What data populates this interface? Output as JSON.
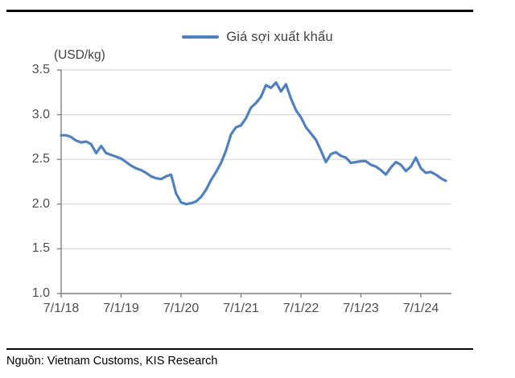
{
  "legend": {
    "label": "Giá sợi xuất khẩu"
  },
  "y_axis_unit": "(USD/kg)",
  "source_note": "Nguồn: Vietnam Customs, KIS Research",
  "colors": {
    "line": "#4e81bd",
    "gridline": "#d6d6d6",
    "axis": "#808080",
    "tick_label": "#4d4d4d",
    "rule": "#0a0a0a"
  },
  "chart_data": {
    "type": "line",
    "title": "",
    "ylabel": "(USD/kg)",
    "xlabel": "",
    "ylim": [
      1.0,
      3.5
    ],
    "grid": "horizontal",
    "legend_position": "top-center",
    "x_monthly_start": "7/2018",
    "x_monthly_end": "12/2024",
    "x_tick_labels": [
      "7/1/18",
      "7/1/19",
      "7/1/20",
      "7/1/21",
      "7/1/22",
      "7/1/23",
      "7/1/24"
    ],
    "x_tick_month_indices": [
      0,
      12,
      24,
      36,
      48,
      60,
      72
    ],
    "y_ticks": [
      1.0,
      1.5,
      2.0,
      2.5,
      3.0,
      3.5
    ],
    "y_tick_labels": [
      "1.0",
      "1.5",
      "2.0",
      "2.5",
      "3.0",
      "3.5"
    ],
    "series": [
      {
        "name": "Giá sợi xuất khẩu",
        "values": [
          2.77,
          2.77,
          2.75,
          2.71,
          2.69,
          2.7,
          2.67,
          2.57,
          2.65,
          2.57,
          2.55,
          2.53,
          2.51,
          2.47,
          2.43,
          2.4,
          2.38,
          2.35,
          2.31,
          2.29,
          2.28,
          2.31,
          2.33,
          2.12,
          2.02,
          2.0,
          2.01,
          2.03,
          2.08,
          2.16,
          2.27,
          2.36,
          2.46,
          2.6,
          2.78,
          2.86,
          2.88,
          2.96,
          3.08,
          3.13,
          3.2,
          3.33,
          3.3,
          3.36,
          3.26,
          3.34,
          3.18,
          3.05,
          2.97,
          2.86,
          2.79,
          2.72,
          2.6,
          2.47,
          2.56,
          2.58,
          2.54,
          2.52,
          2.46,
          2.47,
          2.48,
          2.48,
          2.44,
          2.42,
          2.38,
          2.33,
          2.41,
          2.47,
          2.44,
          2.37,
          2.42,
          2.52,
          2.4,
          2.35,
          2.36,
          2.33,
          2.29,
          2.26
        ]
      }
    ]
  }
}
